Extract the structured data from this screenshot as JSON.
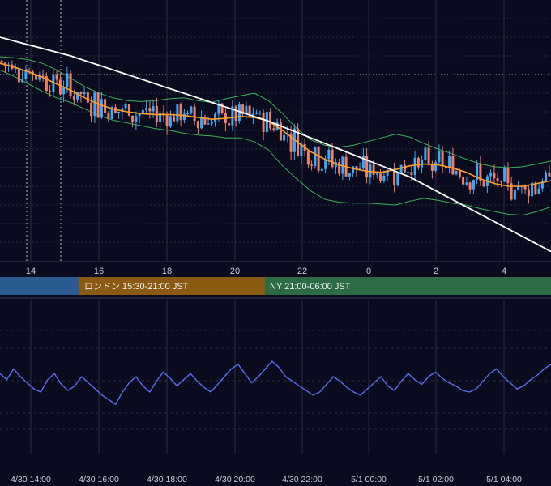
{
  "colors": {
    "background": "#0a0b1e",
    "grid": "#2a2d45",
    "candle_up": "#3fa9f5",
    "candle_down": "#f07f6a",
    "sma_long": "#ffffff",
    "ma": "#ff9f2a",
    "band": "#3fae5a",
    "oscillator": "#5a6cf0",
    "session_tokyo": "#2b5c91",
    "session_london": "#8a5a12",
    "session_ny": "#2d6b45"
  },
  "sessions": [
    {
      "label": "",
      "color_key": "session_tokyo"
    },
    {
      "label": "ロンドン 15:30-21:00 JST",
      "color_key": "session_london"
    },
    {
      "label": "NY 21:00-06:00 JST",
      "color_key": "session_ny"
    }
  ],
  "chart_data": [
    {
      "type": "candlestick",
      "x_tick_labels": [
        "14",
        "16",
        "18",
        "20",
        "22",
        "0",
        "2",
        "4"
      ],
      "y_tick_labels": [],
      "grid": true,
      "series": [
        {
          "type": "line",
          "values": [
            100,
            99.6,
            99.2,
            98.8,
            98.4,
            98,
            97.5,
            97,
            96.5,
            96,
            95.5,
            95,
            94.5,
            94,
            93.5,
            93,
            92.5,
            92,
            91.5,
            91,
            90.4,
            89.8,
            89.2,
            88.6,
            88,
            87.4,
            86.8,
            86.2,
            85.6,
            85,
            84.2,
            83.4,
            82.6,
            81.8,
            81,
            80.2,
            79.4,
            78.6,
            77.8,
            77
          ]
        },
        {
          "type": "line",
          "values": [
            97.2,
            96.8,
            96.3,
            95.7,
            95,
            94.3,
            93.5,
            92.8,
            92.3,
            92,
            91.8,
            91.7,
            91.7,
            91.6,
            91.4,
            91.2,
            91.3,
            91.5,
            91.4,
            91,
            90,
            88.8,
            87.7,
            86.9,
            86.3,
            85.9,
            85.6,
            85.5,
            85.8,
            86.2,
            86.4,
            86.3,
            86,
            85.5,
            84.8,
            84.3,
            84,
            84,
            84.3,
            84.6
          ]
        },
        {
          "type": "line",
          "values": [
            97.9,
            97.8,
            97.6,
            97.2,
            96.5,
            95.6,
            94.7,
            94,
            93.5,
            93.2,
            93.1,
            93.2,
            93.4,
            93.5,
            93.2,
            93,
            93.4,
            93.7,
            94,
            93.2,
            91.8,
            90.2,
            89,
            88.4,
            88.2,
            88.4,
            88.8,
            89.2,
            89.6,
            89.3,
            88.6,
            88,
            87.5,
            86.9,
            86.4,
            86.1,
            86,
            86.1,
            86.4,
            86.7
          ]
        },
        {
          "type": "line",
          "values": [
            96.5,
            95.8,
            95,
            94.2,
            93.5,
            93,
            92.3,
            91.6,
            91.1,
            90.8,
            90.5,
            90.2,
            90,
            89.7,
            89.5,
            89.4,
            89.2,
            89.2,
            88.8,
            87.9,
            86.2,
            84.8,
            83.5,
            82.6,
            82.3,
            82.2,
            82.2,
            82.1,
            82,
            82.4,
            82.7,
            82.5,
            82.2,
            82,
            81.6,
            81.3,
            81,
            80.9,
            81.3,
            81.8
          ]
        }
      ],
      "ohlc_count": 160,
      "price_start": 97.5,
      "price_end": 82.3
    },
    {
      "type": "line",
      "x_tick_labels": [
        "4/30 14:00",
        "4/30 16:00",
        "4/30 18:00",
        "4/30 20:00",
        "4/30 22:00",
        "5/1 00:00",
        "5/1 02:00",
        "5/1 04:00"
      ],
      "grid": true,
      "ylim": [
        0,
        100
      ],
      "values": [
        52,
        48,
        55,
        50,
        46,
        42,
        40,
        48,
        52,
        45,
        41,
        44,
        50,
        46,
        42,
        38,
        35,
        32,
        40,
        46,
        50,
        44,
        40,
        47,
        53,
        49,
        44,
        48,
        52,
        47,
        43,
        40,
        45,
        50,
        55,
        58,
        52,
        46,
        50,
        55,
        60,
        56,
        50,
        47,
        44,
        41,
        38,
        40,
        45,
        50,
        47,
        43,
        40,
        38,
        42,
        46,
        50,
        44,
        41,
        47,
        52,
        48,
        45,
        50,
        53,
        49,
        46,
        44,
        41,
        40,
        42,
        47,
        52,
        55,
        50,
        46,
        42,
        44,
        48,
        51,
        55,
        58
      ]
    }
  ]
}
